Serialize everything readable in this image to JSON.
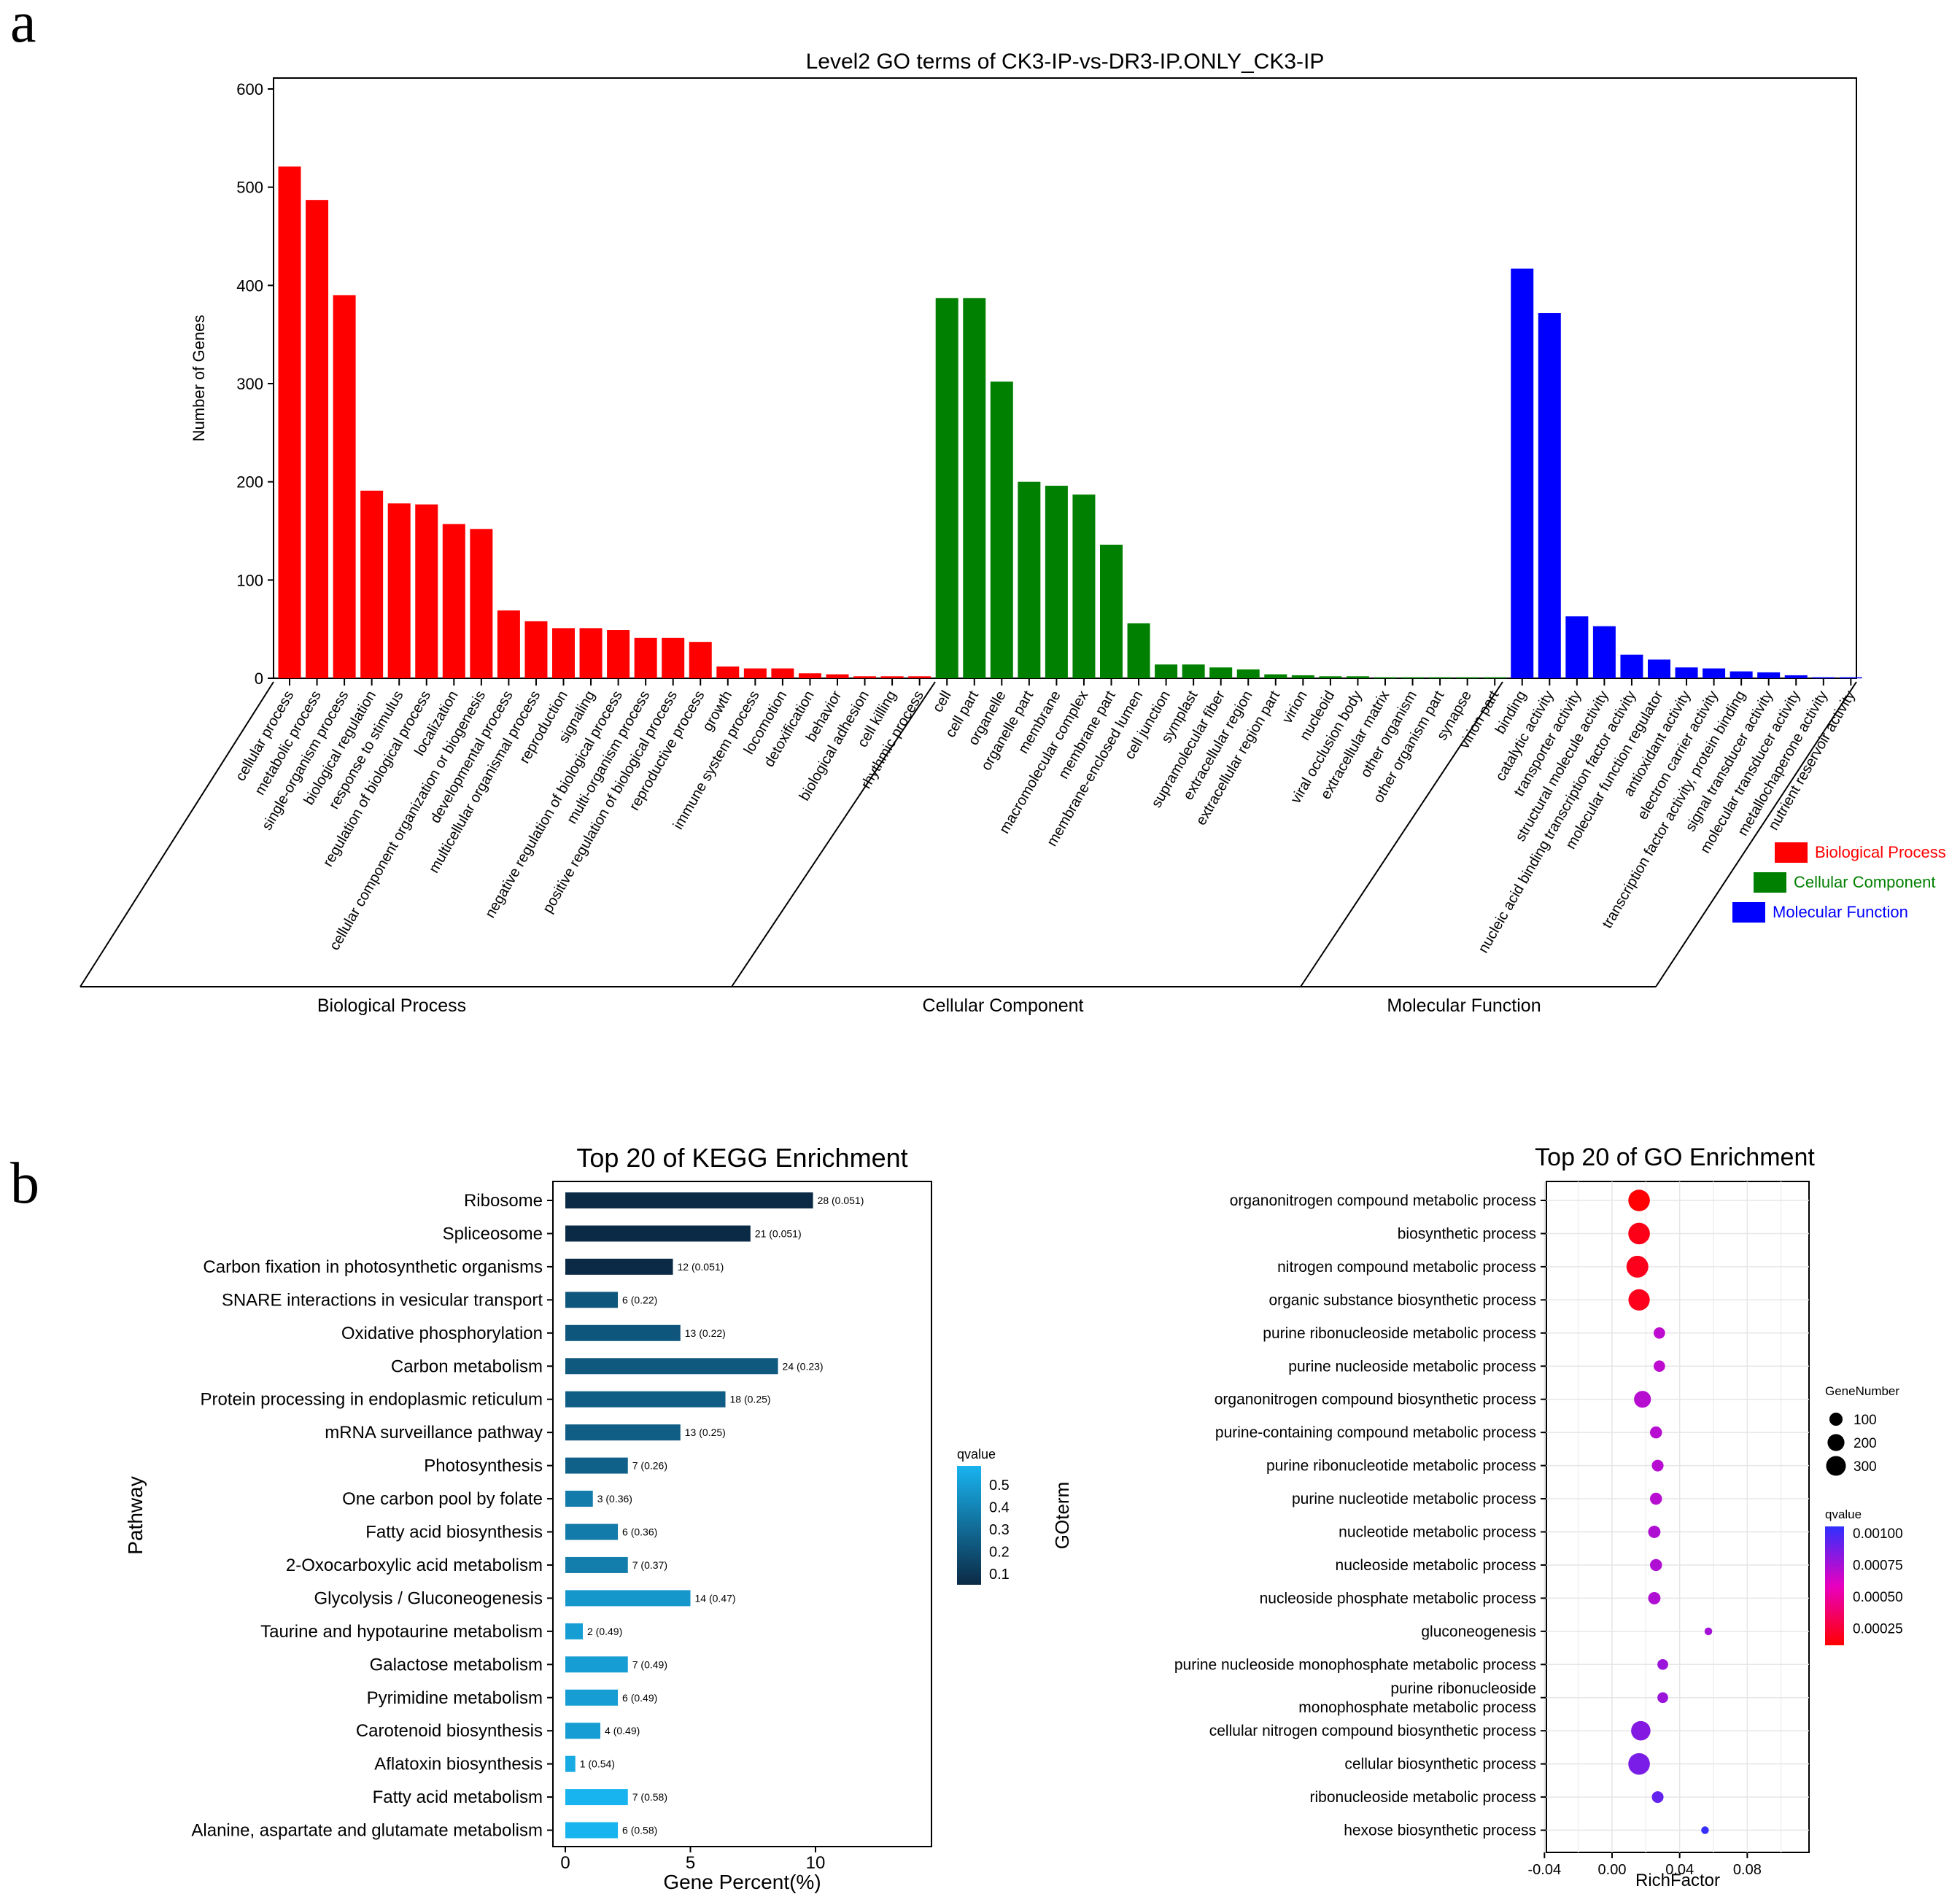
{
  "panels": {
    "a": "a",
    "b": "b"
  },
  "chart_data": [
    {
      "type": "bar",
      "title": "Level2 GO terms of CK3-IP-vs-DR3-IP.ONLY_CK3-IP",
      "ylabel": "Number of Genes",
      "xlabel": "",
      "ylim": [
        0,
        600
      ],
      "yticks": [
        0,
        100,
        200,
        300,
        400,
        500,
        600
      ],
      "grid": false,
      "legend_position": "right",
      "colors": {
        "Biological Process": "#ff0000",
        "Cellular Component": "#008000",
        "Molecular Function": "#0000ff"
      },
      "groups": [
        {
          "name": "Biological Process",
          "categories": [
            "cellular process",
            "metabolic process",
            "single-organism process",
            "biological regulation",
            "response to stimulus",
            "regulation of biological process",
            "localization",
            "cellular component organization or biogenesis",
            "developmental process",
            "multicellular organismal process",
            "reproduction",
            "signaling",
            "negative regulation of biological process",
            "multi-organism process",
            "positive regulation of biological process",
            "reproductive process",
            "growth",
            "immune system process",
            "locomotion",
            "detoxification",
            "behavior",
            "biological adhesion",
            "cell killing",
            "rhythmic process"
          ],
          "values": [
            521,
            487,
            390,
            191,
            178,
            177,
            157,
            152,
            69,
            58,
            51,
            51,
            49,
            41,
            41,
            37,
            12,
            10,
            10,
            5,
            4,
            2,
            2,
            2
          ]
        },
        {
          "name": "Cellular Component",
          "categories": [
            "cell",
            "cell part",
            "organelle",
            "organelle part",
            "membrane",
            "macromolecular complex",
            "membrane part",
            "membrane-enclosed lumen",
            "cell junction",
            "symplast",
            "supramolecular fiber",
            "extracellular region",
            "extracellular region part",
            "virion",
            "nucleoid",
            "viral occlusion body",
            "extracellular matrix",
            "other organism",
            "other organism part",
            "synapse",
            "virion part"
          ],
          "values": [
            387,
            387,
            302,
            200,
            196,
            187,
            136,
            56,
            14,
            14,
            11,
            9,
            4,
            3,
            2,
            2,
            1,
            1,
            1,
            1,
            1
          ]
        },
        {
          "name": "Molecular Function",
          "categories": [
            "binding",
            "catalytic activity",
            "transporter activity",
            "structural molecule activity",
            "nucleic acid binding transcription factor activity",
            "molecular function regulator",
            "antioxidant activity",
            "electron carrier activity",
            "transcription factor activity, protein binding",
            "signal transducer activity",
            "molecular transducer activity",
            "metallochaperone activity",
            "nutrient reservoir activity"
          ],
          "values": [
            417,
            372,
            63,
            53,
            24,
            19,
            11,
            10,
            7,
            6,
            3,
            1,
            1
          ]
        }
      ]
    },
    {
      "type": "bar",
      "orientation": "horizontal",
      "title": "Top 20 of KEGG Enrichment",
      "xlabel": "Gene Percent(%)",
      "ylabel": "Pathway",
      "xlim": [
        -1,
        14.5
      ],
      "xticks": [
        0,
        5,
        10
      ],
      "legend_title": "qvalue",
      "legend_ticks": [
        "0.5",
        "0.4",
        "0.3",
        "0.2",
        "0.1"
      ],
      "categories": [
        "Ribosome",
        "Spliceosome",
        "Carbon fixation in photosynthetic organisms",
        "SNARE interactions in vesicular transport",
        "Oxidative phosphorylation",
        "Carbon metabolism",
        "Protein processing in endoplasmic reticulum",
        "mRNA surveillance pathway",
        "Photosynthesis",
        "One carbon pool by folate",
        "Fatty acid biosynthesis",
        "2-Oxocarboxylic acid metabolism",
        "Glycolysis / Gluconeogenesis",
        "Taurine and hypotaurine metabolism",
        "Galactose metabolism",
        "Pyrimidine metabolism",
        "Carotenoid biosynthesis",
        "Aflatoxin biosynthesis",
        "Fatty acid metabolism",
        "Alanine, aspartate and glutamate metabolism"
      ],
      "gene_percent": [
        9.9,
        7.4,
        4.3,
        2.1,
        4.6,
        8.5,
        6.4,
        4.6,
        2.5,
        1.1,
        2.1,
        2.5,
        5.0,
        0.7,
        2.5,
        2.1,
        1.4,
        0.4,
        2.5,
        2.1
      ],
      "qvalues": [
        0.051,
        0.051,
        0.051,
        0.22,
        0.22,
        0.23,
        0.25,
        0.25,
        0.26,
        0.36,
        0.36,
        0.37,
        0.47,
        0.49,
        0.49,
        0.49,
        0.49,
        0.54,
        0.58,
        0.58
      ],
      "labels": [
        "28 (0.051)",
        "21 (0.051)",
        "12 (0.051)",
        "6 (0.22)",
        "13 (0.22)",
        "24 (0.23)",
        "18 (0.25)",
        "13 (0.25)",
        "7 (0.26)",
        "3 (0.36)",
        "6 (0.36)",
        "7 (0.37)",
        "14 (0.47)",
        "2 (0.49)",
        "7 (0.49)",
        "6 (0.49)",
        "4 (0.49)",
        "1 (0.54)",
        "7 (0.58)",
        "6 (0.58)"
      ]
    },
    {
      "type": "scatter",
      "title": "Top 20 of GO Enrichment",
      "xlabel": "RichFactor",
      "ylabel": "GOterm",
      "xlim": [
        -0.045,
        0.113
      ],
      "xticks": [
        "-0.04",
        "0.00",
        "0.04",
        "0.08"
      ],
      "grid": true,
      "size_legend_title": "GeneNumber",
      "size_legend": [
        100,
        200,
        300
      ],
      "color_legend_title": "qvalue",
      "color_legend_ticks": [
        "0.00100",
        "0.00075",
        "0.00050",
        "0.00025"
      ],
      "categories": [
        "organonitrogen compound metabolic process",
        "biosynthetic process",
        "nitrogen compound metabolic process",
        "organic substance biosynthetic process",
        "purine ribonucleoside metabolic process",
        "purine nucleoside metabolic process",
        "organonitrogen compound biosynthetic process",
        "purine-containing compound metabolic process",
        "purine ribonucleotide metabolic process",
        "purine nucleotide metabolic process",
        "nucleotide metabolic process",
        "nucleoside metabolic process",
        "nucleoside phosphate metabolic process",
        "gluconeogenesis",
        "purine nucleoside monophosphate metabolic process",
        "purine ribonucleoside monophosphate metabolic process",
        "cellular nitrogen compound biosynthetic process",
        "cellular biosynthetic process",
        "ribonucleoside metabolic process",
        "hexose biosynthetic process"
      ],
      "category_lines": [
        null,
        null,
        null,
        null,
        null,
        null,
        null,
        null,
        null,
        null,
        null,
        null,
        null,
        null,
        null,
        [
          "purine ribonucleoside",
          "monophosphate metabolic process"
        ],
        null,
        null,
        null,
        null
      ],
      "rich_factor": [
        0.016,
        0.016,
        0.015,
        0.016,
        0.028,
        0.028,
        0.018,
        0.026,
        0.027,
        0.026,
        0.025,
        0.026,
        0.025,
        0.057,
        0.03,
        0.03,
        0.017,
        0.016,
        0.027,
        0.055
      ],
      "gene_number": [
        330,
        330,
        340,
        320,
        55,
        55,
        175,
        65,
        60,
        65,
        70,
        65,
        70,
        12,
        45,
        45,
        250,
        330,
        60,
        12
      ],
      "qvalues": [
        1e-05,
        7e-05,
        8e-05,
        8e-05,
        0.00068,
        0.00068,
        0.0007,
        0.0007,
        0.0007,
        0.0007,
        0.00072,
        0.00072,
        0.00072,
        0.00075,
        0.00078,
        0.00078,
        0.00085,
        0.00088,
        0.00095,
        0.00108
      ]
    }
  ]
}
